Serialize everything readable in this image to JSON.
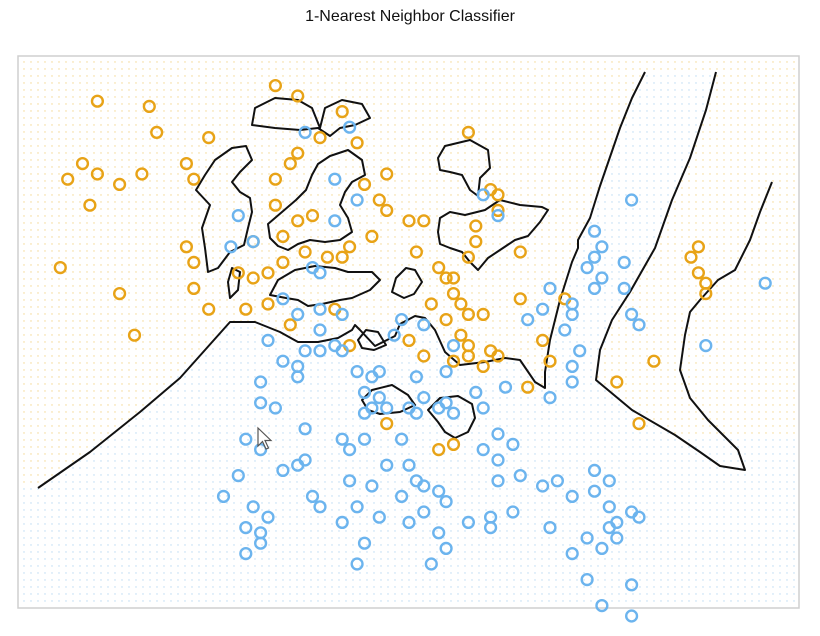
{
  "chart_data": {
    "type": "scatter",
    "title": "1-Nearest Neighbor Classifier",
    "xlabel": "",
    "ylabel": "",
    "grid": false,
    "colors": {
      "orange": "#E8A317",
      "blue": "#6CB4EE",
      "boundary": "#111111"
    },
    "series": [
      {
        "color": "orange",
        "points": [
          [
            0.08,
            0.94
          ],
          [
            0.15,
            0.93
          ],
          [
            0.16,
            0.88
          ],
          [
            0.23,
            0.87
          ],
          [
            0.32,
            0.97
          ],
          [
            0.35,
            0.95
          ],
          [
            0.41,
            0.92
          ],
          [
            0.38,
            0.87
          ],
          [
            0.47,
            0.8
          ],
          [
            0.58,
            0.88
          ],
          [
            0.04,
            0.79
          ],
          [
            0.06,
            0.82
          ],
          [
            0.08,
            0.8
          ],
          [
            0.11,
            0.78
          ],
          [
            0.14,
            0.8
          ],
          [
            0.2,
            0.82
          ],
          [
            0.21,
            0.79
          ],
          [
            0.07,
            0.74
          ],
          [
            0.03,
            0.62
          ],
          [
            0.11,
            0.57
          ],
          [
            0.2,
            0.66
          ],
          [
            0.21,
            0.63
          ],
          [
            0.21,
            0.58
          ],
          [
            0.27,
            0.61
          ],
          [
            0.29,
            0.6
          ],
          [
            0.31,
            0.61
          ],
          [
            0.33,
            0.63
          ],
          [
            0.36,
            0.65
          ],
          [
            0.39,
            0.64
          ],
          [
            0.41,
            0.64
          ],
          [
            0.42,
            0.66
          ],
          [
            0.45,
            0.68
          ],
          [
            0.35,
            0.71
          ],
          [
            0.37,
            0.72
          ],
          [
            0.33,
            0.68
          ],
          [
            0.29,
            0.67
          ],
          [
            0.32,
            0.74
          ],
          [
            0.32,
            0.79
          ],
          [
            0.34,
            0.82
          ],
          [
            0.35,
            0.84
          ],
          [
            0.43,
            0.86
          ],
          [
            0.44,
            0.78
          ],
          [
            0.46,
            0.75
          ],
          [
            0.47,
            0.73
          ],
          [
            0.5,
            0.71
          ],
          [
            0.52,
            0.71
          ],
          [
            0.51,
            0.65
          ],
          [
            0.54,
            0.62
          ],
          [
            0.55,
            0.6
          ],
          [
            0.56,
            0.6
          ],
          [
            0.58,
            0.64
          ],
          [
            0.59,
            0.67
          ],
          [
            0.59,
            0.7
          ],
          [
            0.62,
            0.73
          ],
          [
            0.62,
            0.76
          ],
          [
            0.61,
            0.77
          ],
          [
            0.65,
            0.65
          ],
          [
            0.56,
            0.57
          ],
          [
            0.57,
            0.55
          ],
          [
            0.58,
            0.53
          ],
          [
            0.6,
            0.53
          ],
          [
            0.53,
            0.55
          ],
          [
            0.55,
            0.52
          ],
          [
            0.57,
            0.49
          ],
          [
            0.58,
            0.47
          ],
          [
            0.61,
            0.46
          ],
          [
            0.62,
            0.45
          ],
          [
            0.6,
            0.43
          ],
          [
            0.58,
            0.45
          ],
          [
            0.56,
            0.44
          ],
          [
            0.5,
            0.48
          ],
          [
            0.52,
            0.45
          ],
          [
            0.68,
            0.48
          ],
          [
            0.69,
            0.44
          ],
          [
            0.66,
            0.39
          ],
          [
            0.65,
            0.56
          ],
          [
            0.71,
            0.56
          ],
          [
            0.78,
            0.4
          ],
          [
            0.81,
            0.32
          ],
          [
            0.83,
            0.44
          ],
          [
            0.88,
            0.64
          ],
          [
            0.89,
            0.61
          ],
          [
            0.89,
            0.66
          ],
          [
            0.9,
            0.57
          ],
          [
            0.9,
            0.59
          ],
          [
            0.34,
            0.51
          ],
          [
            0.31,
            0.55
          ],
          [
            0.28,
            0.54
          ],
          [
            0.4,
            0.54
          ],
          [
            0.42,
            0.47
          ],
          [
            0.23,
            0.54
          ],
          [
            0.13,
            0.49
          ],
          [
            0.47,
            0.32
          ],
          [
            0.54,
            0.27
          ],
          [
            0.56,
            0.28
          ]
        ]
      },
      {
        "color": "blue",
        "points": [
          [
            0.36,
            0.88
          ],
          [
            0.42,
            0.89
          ],
          [
            0.27,
            0.72
          ],
          [
            0.29,
            0.67
          ],
          [
            0.26,
            0.66
          ],
          [
            0.4,
            0.71
          ],
          [
            0.43,
            0.75
          ],
          [
            0.4,
            0.79
          ],
          [
            0.6,
            0.76
          ],
          [
            0.62,
            0.72
          ],
          [
            0.33,
            0.56
          ],
          [
            0.35,
            0.53
          ],
          [
            0.38,
            0.54
          ],
          [
            0.41,
            0.53
          ],
          [
            0.38,
            0.5
          ],
          [
            0.38,
            0.46
          ],
          [
            0.41,
            0.46
          ],
          [
            0.43,
            0.42
          ],
          [
            0.45,
            0.41
          ],
          [
            0.46,
            0.42
          ],
          [
            0.44,
            0.38
          ],
          [
            0.46,
            0.37
          ],
          [
            0.44,
            0.34
          ],
          [
            0.45,
            0.35
          ],
          [
            0.47,
            0.35
          ],
          [
            0.5,
            0.35
          ],
          [
            0.48,
            0.49
          ],
          [
            0.49,
            0.52
          ],
          [
            0.52,
            0.51
          ],
          [
            0.51,
            0.41
          ],
          [
            0.52,
            0.37
          ],
          [
            0.51,
            0.34
          ],
          [
            0.54,
            0.35
          ],
          [
            0.55,
            0.36
          ],
          [
            0.56,
            0.34
          ],
          [
            0.59,
            0.38
          ],
          [
            0.6,
            0.35
          ],
          [
            0.63,
            0.39
          ],
          [
            0.62,
            0.3
          ],
          [
            0.64,
            0.28
          ],
          [
            0.69,
            0.37
          ],
          [
            0.72,
            0.4
          ],
          [
            0.72,
            0.43
          ],
          [
            0.73,
            0.46
          ],
          [
            0.71,
            0.5
          ],
          [
            0.72,
            0.53
          ],
          [
            0.75,
            0.58
          ],
          [
            0.76,
            0.6
          ],
          [
            0.74,
            0.62
          ],
          [
            0.75,
            0.64
          ],
          [
            0.76,
            0.66
          ],
          [
            0.79,
            0.63
          ],
          [
            0.8,
            0.75
          ],
          [
            0.79,
            0.58
          ],
          [
            0.8,
            0.53
          ],
          [
            0.81,
            0.51
          ],
          [
            0.66,
            0.52
          ],
          [
            0.68,
            0.54
          ],
          [
            0.69,
            0.58
          ],
          [
            0.72,
            0.55
          ],
          [
            0.31,
            0.48
          ],
          [
            0.4,
            0.47
          ],
          [
            0.3,
            0.4
          ],
          [
            0.35,
            0.41
          ],
          [
            0.32,
            0.35
          ],
          [
            0.36,
            0.31
          ],
          [
            0.28,
            0.29
          ],
          [
            0.3,
            0.27
          ],
          [
            0.33,
            0.23
          ],
          [
            0.35,
            0.24
          ],
          [
            0.3,
            0.36
          ],
          [
            0.37,
            0.18
          ],
          [
            0.42,
            0.27
          ],
          [
            0.47,
            0.24
          ],
          [
            0.5,
            0.24
          ],
          [
            0.52,
            0.2
          ],
          [
            0.54,
            0.19
          ],
          [
            0.55,
            0.17
          ],
          [
            0.51,
            0.21
          ],
          [
            0.49,
            0.29
          ],
          [
            0.62,
            0.21
          ],
          [
            0.65,
            0.22
          ],
          [
            0.62,
            0.25
          ],
          [
            0.6,
            0.27
          ],
          [
            0.68,
            0.2
          ],
          [
            0.7,
            0.21
          ],
          [
            0.72,
            0.18
          ],
          [
            0.75,
            0.19
          ],
          [
            0.77,
            0.16
          ],
          [
            0.78,
            0.13
          ],
          [
            0.8,
            0.15
          ],
          [
            0.81,
            0.14
          ],
          [
            0.77,
            0.21
          ],
          [
            0.75,
            0.23
          ],
          [
            0.77,
            0.12
          ],
          [
            0.74,
            0.1
          ],
          [
            0.78,
            0.1
          ],
          [
            0.76,
            0.08
          ],
          [
            0.55,
            0.08
          ],
          [
            0.53,
            0.05
          ],
          [
            0.49,
            0.18
          ],
          [
            0.52,
            0.15
          ],
          [
            0.5,
            0.13
          ],
          [
            0.54,
            0.11
          ],
          [
            0.58,
            0.13
          ],
          [
            0.61,
            0.12
          ],
          [
            0.61,
            0.14
          ],
          [
            0.64,
            0.15
          ],
          [
            0.69,
            0.12
          ],
          [
            0.72,
            0.07
          ],
          [
            0.74,
            0.02
          ],
          [
            0.8,
            0.01
          ],
          [
            0.8,
            -0.05
          ],
          [
            0.76,
            -0.03
          ],
          [
            0.43,
            0.05
          ],
          [
            0.44,
            0.09
          ],
          [
            0.46,
            0.14
          ],
          [
            0.36,
            0.25
          ],
          [
            0.42,
            0.21
          ],
          [
            0.45,
            0.2
          ],
          [
            0.27,
            0.22
          ],
          [
            0.25,
            0.18
          ],
          [
            0.29,
            0.16
          ],
          [
            0.31,
            0.14
          ],
          [
            0.28,
            0.12
          ],
          [
            0.3,
            0.11
          ],
          [
            0.3,
            0.09
          ],
          [
            0.28,
            0.07
          ],
          [
            0.41,
            0.13
          ],
          [
            0.43,
            0.16
          ],
          [
            0.38,
            0.16
          ],
          [
            0.9,
            0.47
          ],
          [
            0.98,
            0.59
          ],
          [
            0.75,
            0.69
          ],
          [
            0.38,
            0.61
          ],
          [
            0.37,
            0.62
          ],
          [
            0.35,
            0.43
          ],
          [
            0.33,
            0.44
          ],
          [
            0.36,
            0.46
          ],
          [
            0.56,
            0.47
          ],
          [
            0.55,
            0.42
          ],
          [
            0.41,
            0.29
          ],
          [
            0.44,
            0.29
          ]
        ]
      }
    ]
  }
}
